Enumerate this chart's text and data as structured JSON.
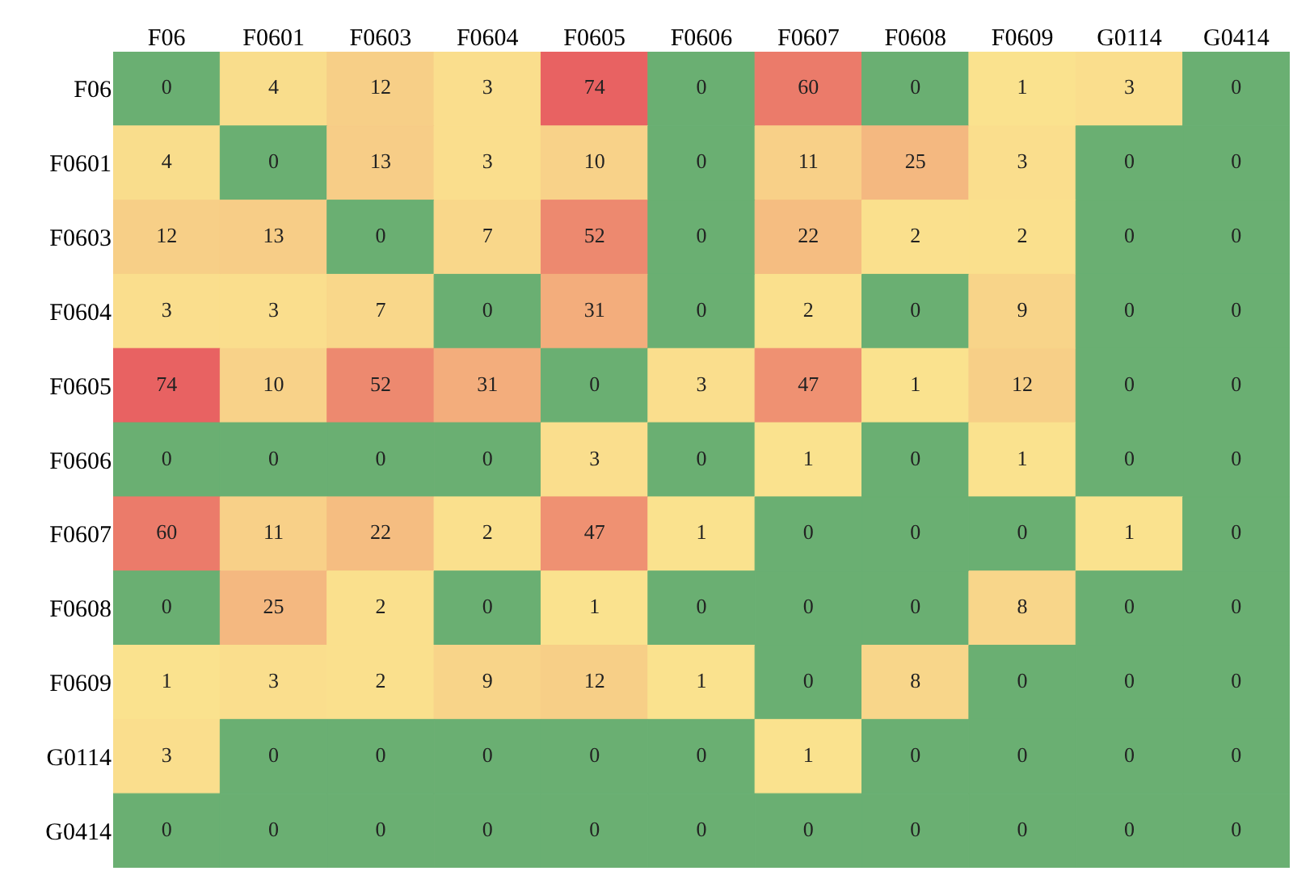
{
  "chart_data": {
    "type": "heatmap",
    "categories": [
      "F06",
      "F0601",
      "F0603",
      "F0604",
      "F0605",
      "F0606",
      "F0607",
      "F0608",
      "F0609",
      "G0114",
      "G0414"
    ],
    "y_categories": [
      "F06",
      "F0601",
      "F0603",
      "F0604",
      "F0605",
      "F0606",
      "F0607",
      "F0608",
      "F0609",
      "G0114",
      "G0414"
    ],
    "cells": [
      [
        0,
        4,
        12,
        3,
        74,
        0,
        60,
        0,
        1,
        3,
        0
      ],
      [
        4,
        0,
        13,
        3,
        10,
        0,
        11,
        25,
        3,
        0,
        0
      ],
      [
        12,
        13,
        0,
        7,
        52,
        0,
        22,
        2,
        2,
        0,
        0
      ],
      [
        3,
        3,
        7,
        0,
        31,
        0,
        2,
        0,
        9,
        0,
        0
      ],
      [
        74,
        10,
        52,
        31,
        0,
        3,
        47,
        1,
        12,
        0,
        0
      ],
      [
        0,
        0,
        0,
        0,
        3,
        0,
        1,
        0,
        1,
        0,
        0
      ],
      [
        60,
        11,
        22,
        2,
        47,
        1,
        0,
        0,
        0,
        1,
        0
      ],
      [
        0,
        25,
        2,
        0,
        1,
        0,
        0,
        0,
        8,
        0,
        0
      ],
      [
        1,
        3,
        2,
        9,
        12,
        1,
        0,
        8,
        0,
        0,
        0
      ],
      [
        3,
        0,
        0,
        0,
        0,
        0,
        1,
        0,
        0,
        0,
        0
      ],
      [
        0,
        0,
        0,
        0,
        0,
        0,
        0,
        0,
        0,
        0,
        0
      ]
    ],
    "data_labels": true
  }
}
